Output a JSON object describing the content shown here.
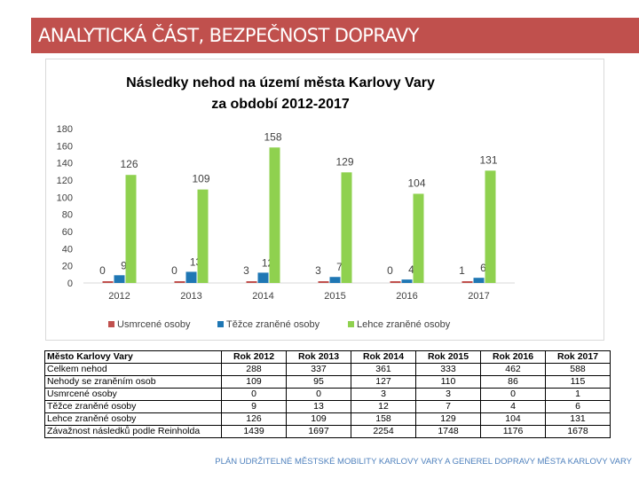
{
  "header": {
    "title": "ANALYTICKÁ ČÁST, BEZPEČNOST DOPRAVY"
  },
  "chart_data": {
    "type": "bar",
    "title": "Následky nehod na území města Karlovy Vary",
    "subtitle": "za období 2012-2017",
    "categories": [
      "2012",
      "2013",
      "2014",
      "2015",
      "2016",
      "2017"
    ],
    "series": [
      {
        "name": "Usmrcené osoby",
        "values": [
          0,
          0,
          3,
          3,
          0,
          1
        ],
        "color": "#c0504d"
      },
      {
        "name": "Těžce zraněné osoby",
        "values": [
          9,
          13,
          12,
          7,
          4,
          6
        ],
        "color": "#1f77b4"
      },
      {
        "name": "Lehce zraněné osoby",
        "values": [
          126,
          109,
          158,
          129,
          104,
          131
        ],
        "color": "#8fd14f"
      }
    ],
    "ylim": [
      0,
      180
    ],
    "yticks": [
      "0",
      "20",
      "40",
      "60",
      "80",
      "100",
      "120",
      "140",
      "160",
      "180"
    ],
    "grid": false,
    "legend": "bottom"
  },
  "table": {
    "header": [
      "Město Karlovy Vary",
      "Rok 2012",
      "Rok 2013",
      "Rok 2014",
      "Rok 2015",
      "Rok 2016",
      "Rok 2017"
    ],
    "rows": [
      [
        "Celkem nehod",
        "288",
        "337",
        "361",
        "333",
        "462",
        "588"
      ],
      [
        "Nehody se zraněním osob",
        "109",
        "95",
        "127",
        "110",
        "86",
        "115"
      ],
      [
        "Usmrcené osoby",
        "0",
        "0",
        "3",
        "3",
        "0",
        "1"
      ],
      [
        "Těžce zraněné osoby",
        "9",
        "13",
        "12",
        "7",
        "4",
        "6"
      ],
      [
        "Lehce zraněné osoby",
        "126",
        "109",
        "158",
        "129",
        "104",
        "131"
      ],
      [
        "Závažnost následků podle Reinholda",
        "1439",
        "1697",
        "2254",
        "1748",
        "1176",
        "1678"
      ]
    ]
  },
  "footer": {
    "text": "PLÁN UDRŽITELNÉ MĚSTSKÉ MOBILITY KARLOVY VARY A GENEREL DOPRAVY MĚSTA KARLOVY VARY"
  }
}
